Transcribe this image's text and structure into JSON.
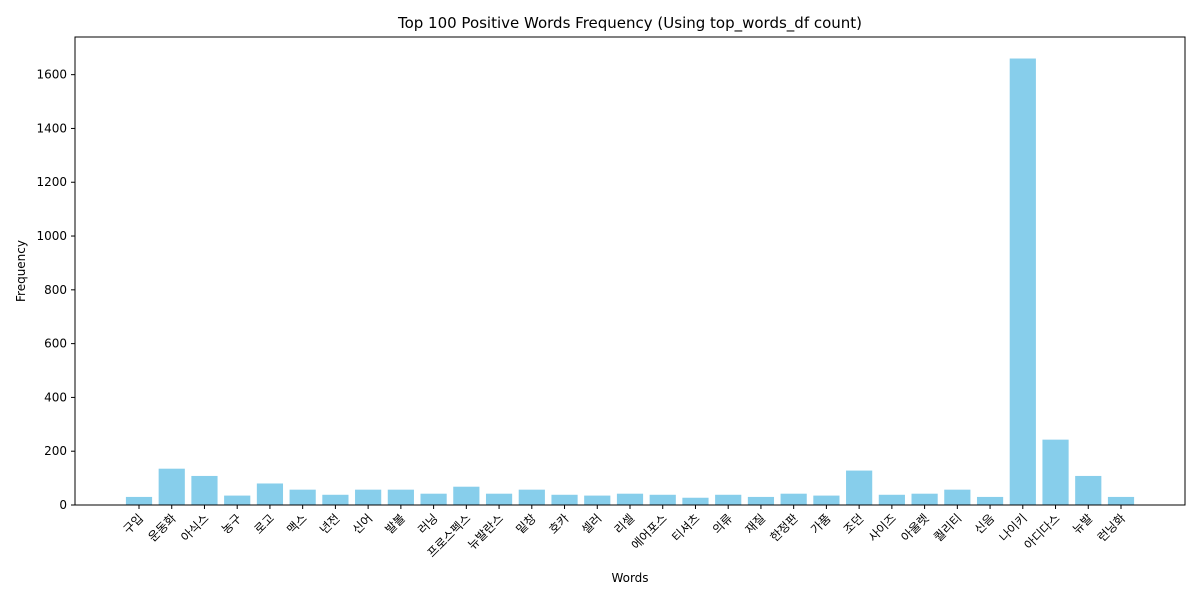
{
  "chart_data": {
    "type": "bar",
    "title": "Top 100 Positive Words Frequency (Using top_words_df count)",
    "xlabel": "Words",
    "ylabel": "Frequency",
    "ylim": [
      0,
      1740
    ],
    "yticks": [
      0,
      200,
      400,
      600,
      800,
      1000,
      1200,
      1400,
      1600
    ],
    "grid": false,
    "bar_color": "#87ceeb",
    "categories": [
      "구입",
      "운동화",
      "아식스",
      "농구",
      "로고",
      "맥스",
      "년전",
      "신어",
      "발볼",
      "러닝",
      "프로스펙스",
      "뉴발란스",
      "밑창",
      "호카",
      "셀러",
      "리셀",
      "에어포스",
      "티셔츠",
      "의류",
      "재질",
      "한정판",
      "가품",
      "조던",
      "사이즈",
      "아울렛",
      "퀄리티",
      "신음",
      "나이키",
      "아디다스",
      "뉴발",
      "런닝화"
    ],
    "values": [
      30,
      135,
      108,
      35,
      80,
      57,
      38,
      57,
      57,
      42,
      68,
      42,
      57,
      38,
      35,
      42,
      38,
      27,
      38,
      30,
      42,
      35,
      128,
      38,
      42,
      57,
      30,
      1660,
      243,
      108,
      30
    ]
  }
}
